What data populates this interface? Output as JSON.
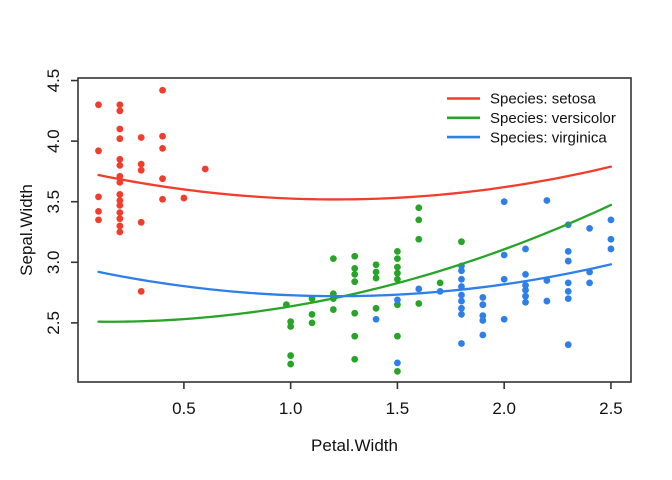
{
  "chart_data": {
    "type": "scatter",
    "title": "",
    "xlabel": "Petal.Width",
    "ylabel": "Sepal.Width",
    "xlim": [
      0.004,
      2.594
    ],
    "ylim": [
      2.012,
      4.521
    ],
    "x_ticks": [
      0.5,
      1.0,
      1.5,
      2.0,
      2.5
    ],
    "y_ticks": [
      2.5,
      3.0,
      3.5,
      4.0,
      4.5
    ],
    "grid": false,
    "legend_position": "top-right",
    "axis_color": "#333333",
    "series": [
      {
        "name": "Species: setosa",
        "color": "#F23D2D",
        "fit_curve": {
          "a": 3.758,
          "b": -0.395,
          "c": 0.163,
          "x_from": 0.1,
          "x_to": 2.5
        },
        "points": [
          [
            0.1,
            4.3
          ],
          [
            0.1,
            3.92
          ],
          [
            0.1,
            3.54
          ],
          [
            0.1,
            3.42
          ],
          [
            0.1,
            3.35
          ],
          [
            0.2,
            4.3
          ],
          [
            0.2,
            4.25
          ],
          [
            0.2,
            4.1
          ],
          [
            0.2,
            4.02
          ],
          [
            0.2,
            3.85
          ],
          [
            0.2,
            3.8
          ],
          [
            0.2,
            3.71
          ],
          [
            0.2,
            3.66
          ],
          [
            0.2,
            3.56
          ],
          [
            0.2,
            3.51
          ],
          [
            0.2,
            3.47
          ],
          [
            0.2,
            3.41
          ],
          [
            0.2,
            3.36
          ],
          [
            0.2,
            3.3
          ],
          [
            0.2,
            3.25
          ],
          [
            0.3,
            4.03
          ],
          [
            0.3,
            3.81
          ],
          [
            0.3,
            3.76
          ],
          [
            0.3,
            3.33
          ],
          [
            0.3,
            2.76
          ],
          [
            0.4,
            4.42
          ],
          [
            0.4,
            4.04
          ],
          [
            0.4,
            3.94
          ],
          [
            0.4,
            3.69
          ],
          [
            0.4,
            3.52
          ],
          [
            0.5,
            3.53
          ],
          [
            0.6,
            3.77
          ]
        ]
      },
      {
        "name": "Species: versicolor",
        "color": "#28A428",
        "fit_curve": {
          "a": 2.513,
          "b": -0.051,
          "c": 0.174,
          "x_from": 0.1,
          "x_to": 2.5
        },
        "points": [
          [
            0.98,
            2.65
          ],
          [
            1.0,
            2.51
          ],
          [
            1.0,
            2.47
          ],
          [
            1.0,
            2.23
          ],
          [
            1.0,
            2.16
          ],
          [
            1.1,
            2.7
          ],
          [
            1.1,
            2.57
          ],
          [
            1.1,
            2.5
          ],
          [
            1.2,
            3.03
          ],
          [
            1.2,
            2.74
          ],
          [
            1.2,
            2.7
          ],
          [
            1.2,
            2.61
          ],
          [
            1.3,
            3.05
          ],
          [
            1.3,
            2.95
          ],
          [
            1.3,
            2.9
          ],
          [
            1.3,
            2.84
          ],
          [
            1.3,
            2.58
          ],
          [
            1.3,
            2.39
          ],
          [
            1.3,
            2.2
          ],
          [
            1.4,
            2.98
          ],
          [
            1.4,
            2.92
          ],
          [
            1.4,
            2.87
          ],
          [
            1.4,
            2.62
          ],
          [
            1.5,
            3.09
          ],
          [
            1.5,
            3.03
          ],
          [
            1.5,
            2.96
          ],
          [
            1.5,
            2.91
          ],
          [
            1.5,
            2.86
          ],
          [
            1.5,
            2.65
          ],
          [
            1.5,
            2.39
          ],
          [
            1.5,
            2.1
          ],
          [
            1.6,
            3.45
          ],
          [
            1.6,
            3.35
          ],
          [
            1.6,
            3.19
          ],
          [
            1.6,
            2.66
          ],
          [
            1.7,
            2.83
          ],
          [
            1.8,
            3.17
          ]
        ]
      },
      {
        "name": "Species: virginica",
        "color": "#2E80E8",
        "fit_curve": {
          "a": 2.958,
          "b": -0.39,
          "c": 0.16,
          "x_from": 0.1,
          "x_to": 2.5
        },
        "points": [
          [
            1.4,
            2.53
          ],
          [
            1.5,
            2.69
          ],
          [
            1.5,
            2.17
          ],
          [
            1.6,
            2.78
          ],
          [
            1.7,
            2.76
          ],
          [
            1.8,
            2.97
          ],
          [
            1.8,
            2.93
          ],
          [
            1.8,
            2.86
          ],
          [
            1.8,
            2.8
          ],
          [
            1.8,
            2.73
          ],
          [
            1.8,
            2.68
          ],
          [
            1.8,
            2.62
          ],
          [
            1.8,
            2.57
          ],
          [
            1.8,
            2.33
          ],
          [
            1.9,
            2.71
          ],
          [
            1.9,
            2.65
          ],
          [
            1.9,
            2.56
          ],
          [
            1.9,
            2.52
          ],
          [
            1.9,
            2.4
          ],
          [
            2.0,
            3.5
          ],
          [
            2.0,
            3.06
          ],
          [
            2.0,
            2.86
          ],
          [
            2.0,
            2.53
          ],
          [
            2.1,
            3.11
          ],
          [
            2.1,
            2.9
          ],
          [
            2.1,
            2.81
          ],
          [
            2.1,
            2.77
          ],
          [
            2.1,
            2.72
          ],
          [
            2.1,
            2.67
          ],
          [
            2.2,
            3.51
          ],
          [
            2.2,
            2.85
          ],
          [
            2.2,
            2.68
          ],
          [
            2.3,
            3.31
          ],
          [
            2.3,
            3.09
          ],
          [
            2.3,
            3.01
          ],
          [
            2.3,
            2.83
          ],
          [
            2.3,
            2.76
          ],
          [
            2.3,
            2.7
          ],
          [
            2.3,
            2.32
          ],
          [
            2.4,
            3.28
          ],
          [
            2.4,
            2.92
          ],
          [
            2.4,
            2.83
          ],
          [
            2.5,
            3.35
          ],
          [
            2.5,
            3.19
          ],
          [
            2.5,
            3.11
          ]
        ]
      }
    ]
  }
}
